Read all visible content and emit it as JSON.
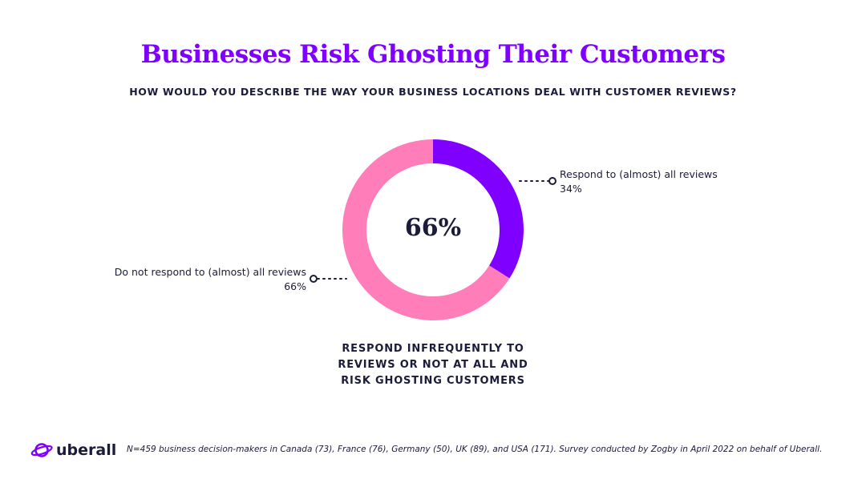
{
  "header": {
    "title": "Businesses Risk Ghosting Their Customers",
    "subtitle": "HOW WOULD YOU DESCRIBE THE WAY YOUR BUSINESS LOCATIONS DEAL WITH CUSTOMER REVIEWS?"
  },
  "colors": {
    "title": "#7f00ff",
    "text": "#1b1b3a",
    "respond": "#7f00ff",
    "not_respond": "#ff7eb9"
  },
  "chart_data": {
    "type": "pie",
    "variant": "donut",
    "center_label": "66%",
    "slices": [
      {
        "label": "Respond to (almost) all reviews",
        "value": 34,
        "value_label": "34%",
        "color": "#7f00ff"
      },
      {
        "label": "Do not respond to (almost) all reviews",
        "value": 66,
        "value_label": "66%",
        "color": "#ff7eb9"
      }
    ],
    "annotation": [
      "RESPOND INFREQUENTLY TO",
      "REVIEWS OR NOT AT ALL AND",
      "RISK GHOSTING CUSTOMERS"
    ]
  },
  "footer": {
    "logo_text": "uberall",
    "logo_icon": "planet-icon",
    "note": "N=459 business decision-makers in Canada (73), France (76), Germany (50), UK (89), and USA (171). Survey conducted by Zogby in April 2022 on behalf of Uberall."
  }
}
